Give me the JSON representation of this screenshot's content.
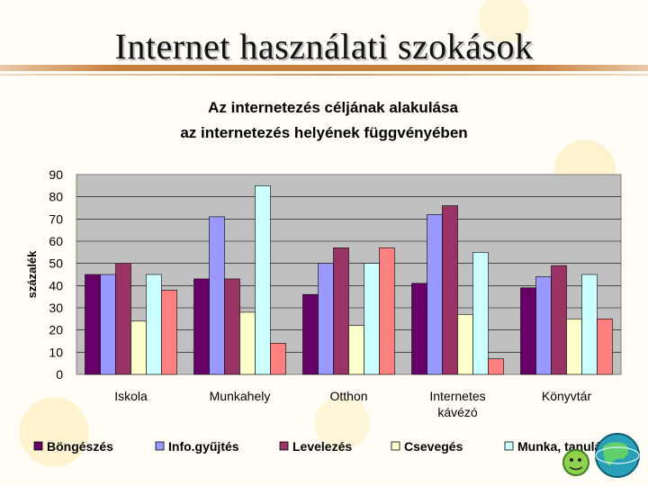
{
  "slide": {
    "title": "Internet használati szokások"
  },
  "chart_data": {
    "type": "bar",
    "title_lines": [
      "Az internetezés céljának alakulása",
      "az internetezés helyének függvényében"
    ],
    "ylabel": "százalék",
    "xlabel": "",
    "ylim": [
      0,
      90
    ],
    "yticks": [
      0,
      10,
      20,
      30,
      40,
      50,
      60,
      70,
      80,
      90
    ],
    "grid": true,
    "legend_position": "bottom",
    "categories": [
      "Iskola",
      "Munkahely",
      "Otthon",
      "Internetes kávézó",
      "Könyvtár"
    ],
    "category_label_lines": [
      [
        "Iskola"
      ],
      [
        "Munkahely"
      ],
      [
        "Otthon"
      ],
      [
        "Internetes",
        "kávézó"
      ],
      [
        "Könyvtár"
      ]
    ],
    "series": [
      {
        "name": "Böngészés",
        "color": "#660066",
        "values": [
          45,
          43,
          36,
          41,
          39
        ]
      },
      {
        "name": "Info.gyűjtés",
        "color": "#9999ff",
        "values": [
          45,
          71,
          50,
          72,
          44
        ]
      },
      {
        "name": "Levelezés",
        "color": "#993366",
        "values": [
          50,
          43,
          57,
          76,
          49
        ]
      },
      {
        "name": "Csevegés",
        "color": "#ffffcc",
        "values": [
          24,
          28,
          22,
          27,
          25
        ]
      },
      {
        "name": "Munka, tanulás",
        "color": "#ccffff",
        "values": [
          45,
          85,
          50,
          55,
          45
        ]
      },
      {
        "name": "",
        "color": "#ff8080",
        "values": [
          38,
          14,
          57,
          7,
          25
        ]
      }
    ]
  }
}
